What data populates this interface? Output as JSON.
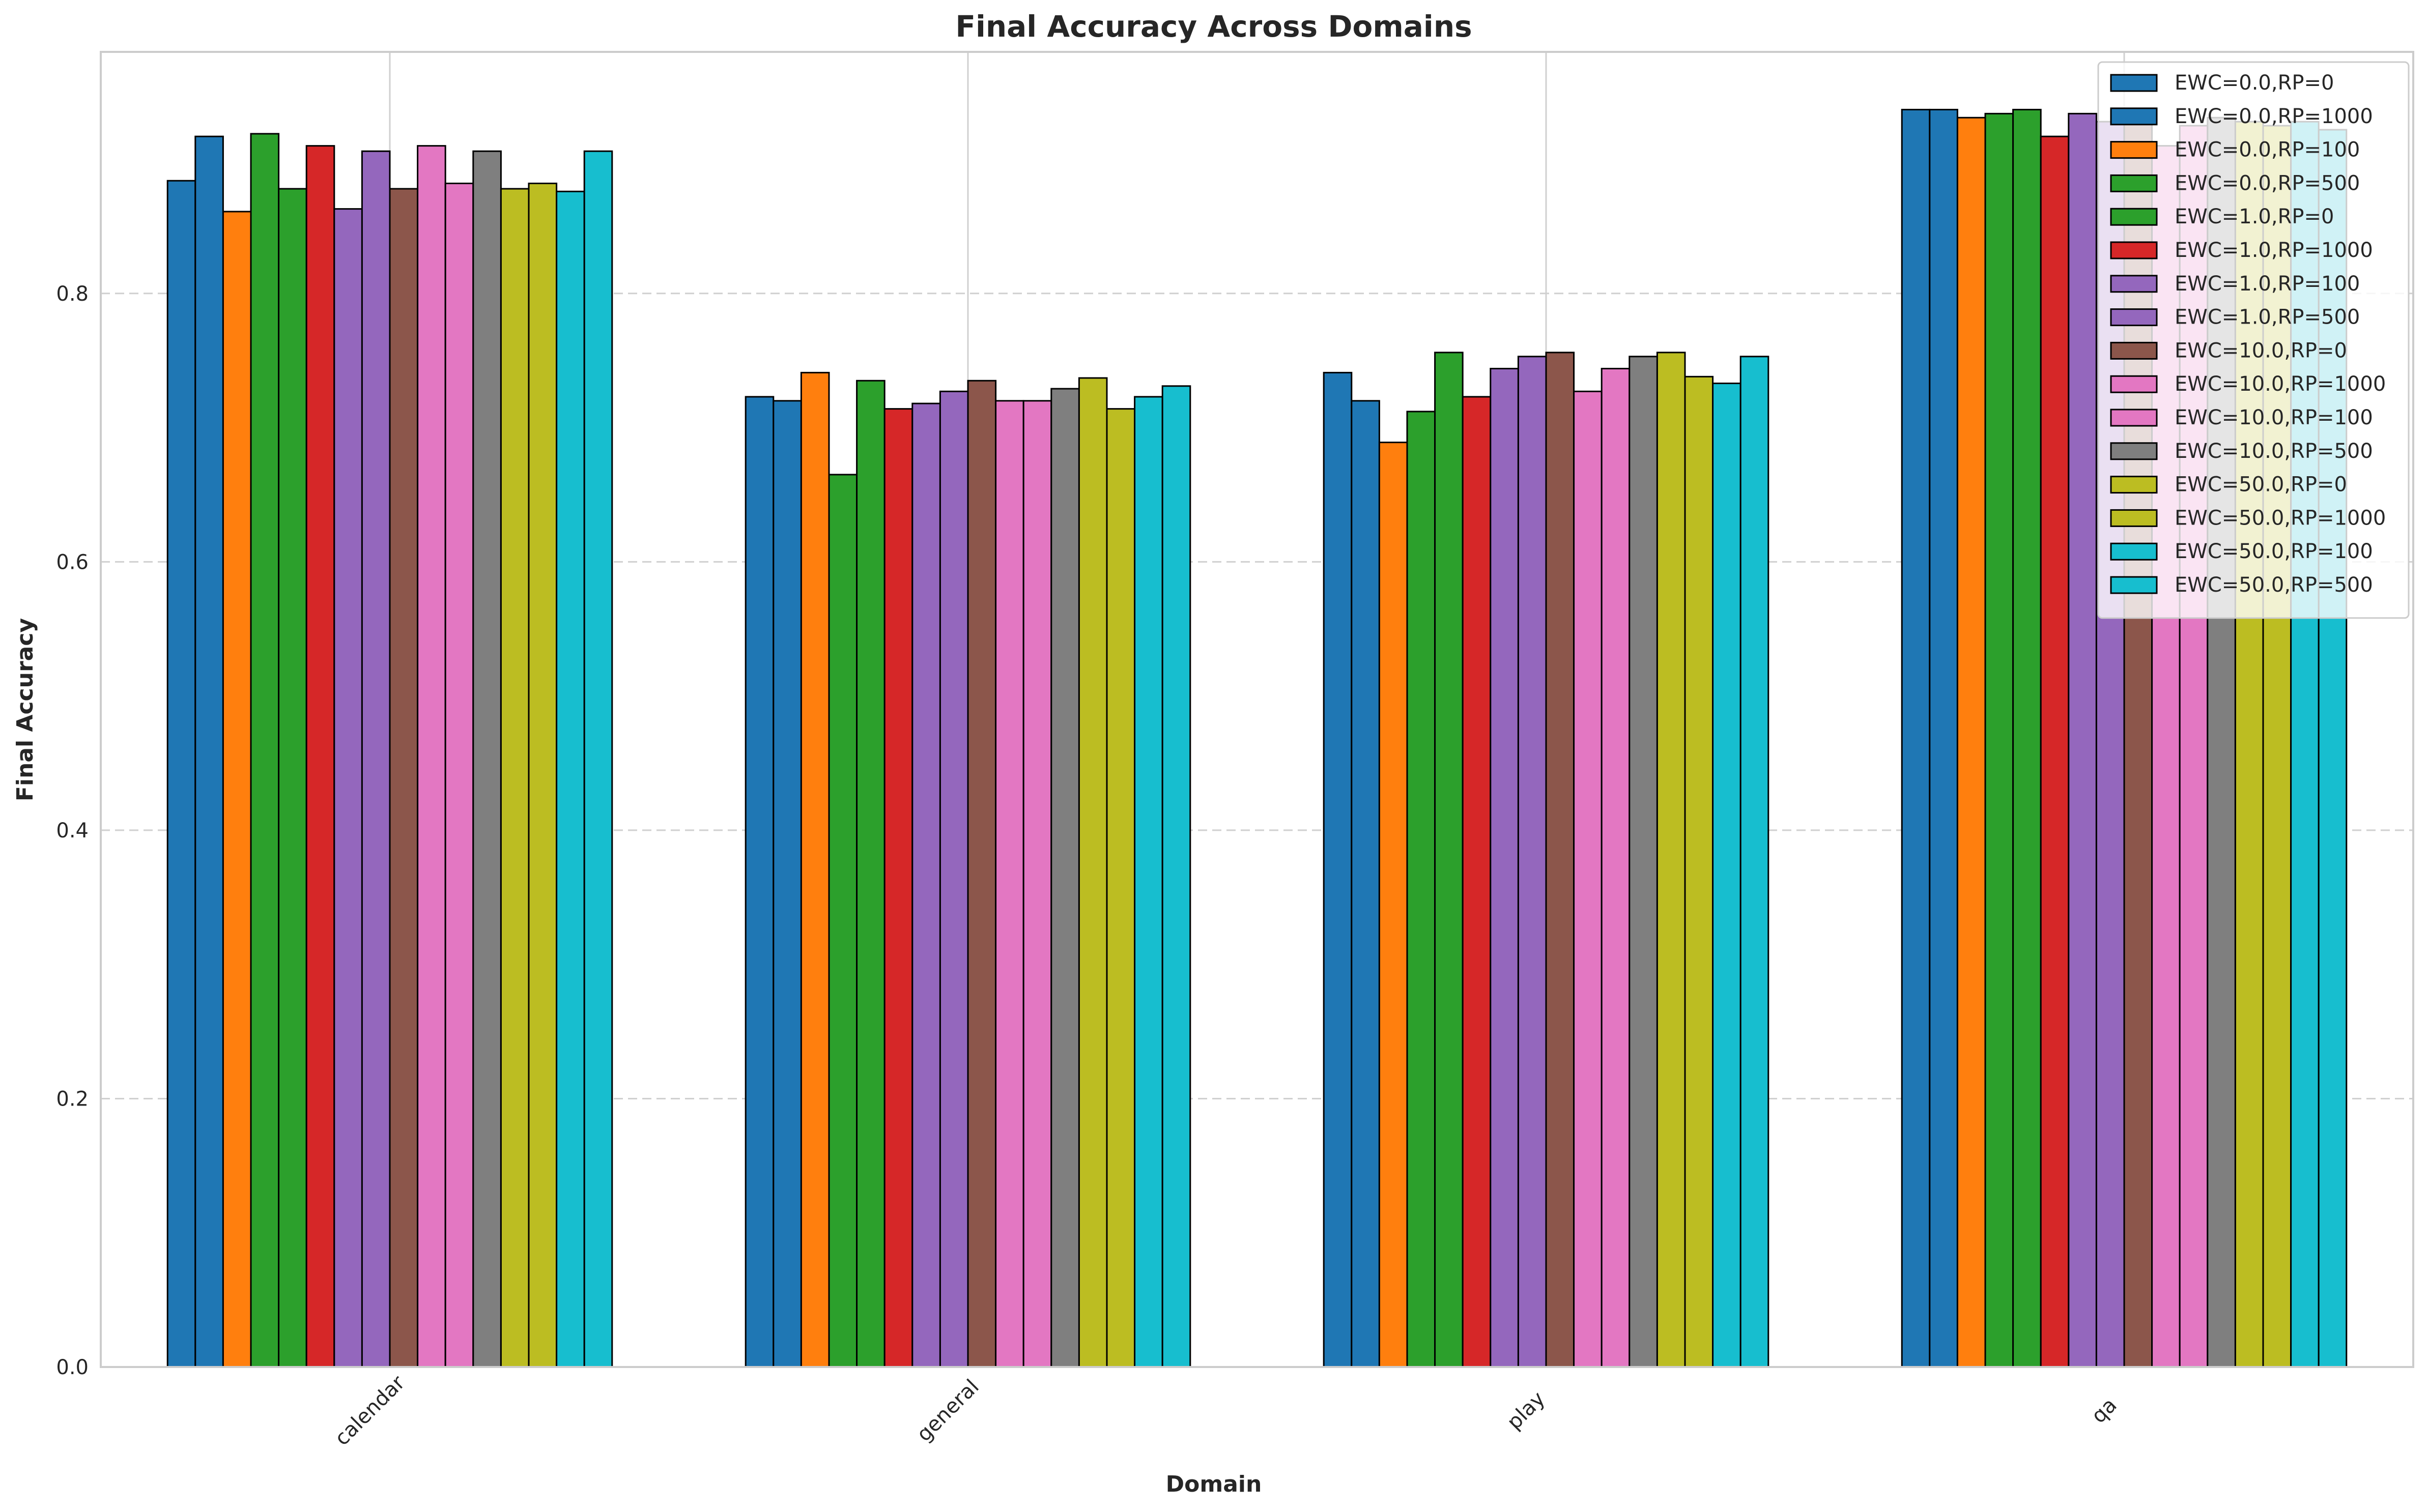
{
  "chart_data": {
    "type": "bar",
    "title": "Final Accuracy Across Domains",
    "xlabel": "Domain",
    "ylabel": "Final Accuracy",
    "categories": [
      "calendar",
      "general",
      "play",
      "qa"
    ],
    "ylim": [
      0,
      0.98
    ],
    "yticks": [
      0.0,
      0.2,
      0.4,
      0.6,
      0.8
    ],
    "grid": true,
    "legend_position": "top-right",
    "series": [
      {
        "name": "EWC=0.0,RP=0",
        "color": "#1f77b4",
        "values": [
          0.884,
          0.723,
          0.741,
          0.937
        ]
      },
      {
        "name": "EWC=0.0,RP=1000",
        "color": "#1f77b4",
        "values": [
          0.917,
          0.72,
          0.72,
          0.937
        ]
      },
      {
        "name": "EWC=0.0,RP=100",
        "color": "#ff7f0e",
        "values": [
          0.861,
          0.741,
          0.689,
          0.931
        ]
      },
      {
        "name": "EWC=0.0,RP=500",
        "color": "#2ca02c",
        "values": [
          0.919,
          0.665,
          0.712,
          0.934
        ]
      },
      {
        "name": "EWC=1.0,RP=0",
        "color": "#2ca02c",
        "values": [
          0.878,
          0.735,
          0.756,
          0.937
        ]
      },
      {
        "name": "EWC=1.0,RP=1000",
        "color": "#d62728",
        "values": [
          0.91,
          0.714,
          0.723,
          0.917
        ]
      },
      {
        "name": "EWC=1.0,RP=100",
        "color": "#9467bd",
        "values": [
          0.863,
          0.718,
          0.744,
          0.934
        ]
      },
      {
        "name": "EWC=1.0,RP=500",
        "color": "#9467bd",
        "values": [
          0.906,
          0.727,
          0.753,
          0.928
        ]
      },
      {
        "name": "EWC=10.0,RP=0",
        "color": "#8c564b",
        "values": [
          0.878,
          0.735,
          0.756,
          0.937
        ]
      },
      {
        "name": "EWC=10.0,RP=1000",
        "color": "#e377c2",
        "values": [
          0.91,
          0.72,
          0.727,
          0.91
        ]
      },
      {
        "name": "EWC=10.0,RP=100",
        "color": "#e377c2",
        "values": [
          0.882,
          0.72,
          0.744,
          0.925
        ]
      },
      {
        "name": "EWC=10.0,RP=500",
        "color": "#7f7f7f",
        "values": [
          0.906,
          0.729,
          0.753,
          0.931
        ]
      },
      {
        "name": "EWC=50.0,RP=0",
        "color": "#bcbd22",
        "values": [
          0.878,
          0.737,
          0.756,
          0.928
        ]
      },
      {
        "name": "EWC=50.0,RP=1000",
        "color": "#bcbd22",
        "values": [
          0.882,
          0.714,
          0.738,
          0.925
        ]
      },
      {
        "name": "EWC=50.0,RP=100",
        "color": "#17becf",
        "values": [
          0.876,
          0.723,
          0.733,
          0.928
        ]
      },
      {
        "name": "EWC=50.0,RP=500",
        "color": "#17becf",
        "values": [
          0.906,
          0.731,
          0.753,
          0.922
        ]
      }
    ]
  }
}
